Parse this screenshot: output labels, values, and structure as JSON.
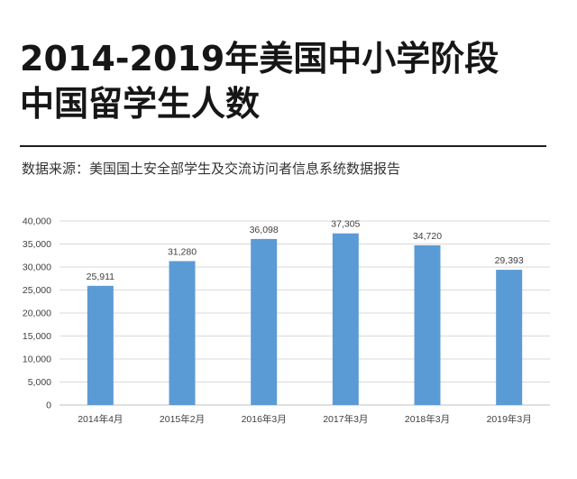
{
  "header": {
    "title_line1": "2014-2019年美国中小学阶段",
    "title_line2": "中国留学生人数",
    "source": "数据来源：美国国土安全部学生及交流访问者信息系统数据报告"
  },
  "chart_data": {
    "type": "bar",
    "categories": [
      "2014年4月",
      "2015年2月",
      "2016年3月",
      "2017年3月",
      "2018年3月",
      "2019年3月"
    ],
    "values": [
      25911,
      31280,
      36098,
      37305,
      34720,
      29393
    ],
    "value_labels": [
      "25,911",
      "31,280",
      "36,098",
      "37,305",
      "34,720",
      "29,393"
    ],
    "yticks": [
      "0",
      "5,000",
      "10,000",
      "15,000",
      "20,000",
      "25,000",
      "30,000",
      "35,000",
      "40,000"
    ],
    "ylim": [
      0,
      40000
    ],
    "grid": true,
    "colors": {
      "bar": "#5b9bd5",
      "grid": "#d9d9d9",
      "axis": "#bfbfbf",
      "text": "#404040"
    }
  }
}
